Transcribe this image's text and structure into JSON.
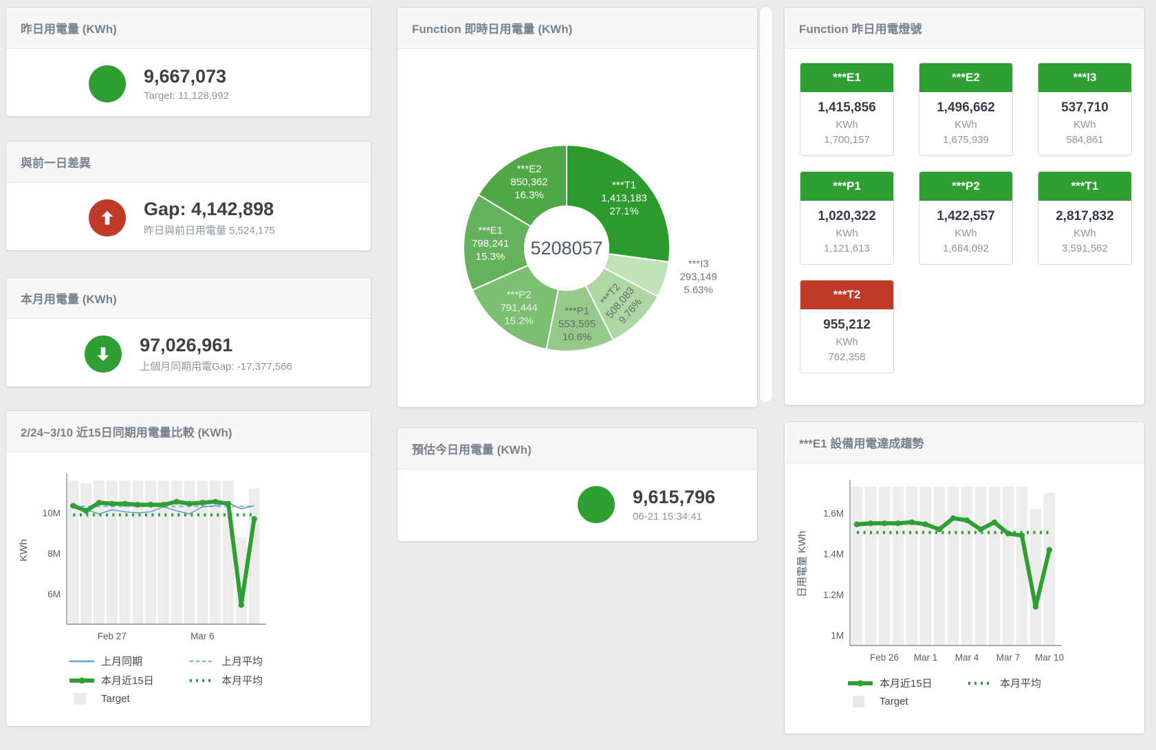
{
  "colors": {
    "green": "#2f9e33",
    "red": "#c03b27",
    "blue": "#5f9ed2",
    "blue_light": "#7fb3e0",
    "bar": "#ececec"
  },
  "cards": {
    "yesterday": {
      "title": "昨日用電量 (KWh)",
      "value": "9,667,073",
      "subtitle": "Target: 11,128,992",
      "status": "green",
      "icon": "circle"
    },
    "prev_day_gap": {
      "title": "與前一日差異",
      "value": "Gap: 4,142,898",
      "subtitle": "昨日與前日用電量 5,524,175",
      "status": "red",
      "icon": "arrow-up"
    },
    "month": {
      "title": "本月用電量 (KWh)",
      "value": "97,026,961",
      "subtitle": "上個月同期用電Gap: -17,377,566",
      "status": "green",
      "icon": "arrow-down"
    },
    "estimate": {
      "title": "預估今日用電量 (KWh)",
      "value": "9,615,796",
      "subtitle": "06-21 15:34:41",
      "status": "green",
      "icon": "circle"
    }
  },
  "lights": {
    "title": "Function 昨日用電燈號",
    "unit": "KWh",
    "tiles": [
      {
        "label": "***E1",
        "value": "1,415,856",
        "target": "1,700,157",
        "status": "green"
      },
      {
        "label": "***E2",
        "value": "1,496,662",
        "target": "1,675,939",
        "status": "green"
      },
      {
        "label": "***I3",
        "value": "537,710",
        "target": "584,861",
        "status": "green"
      },
      {
        "label": "***P1",
        "value": "1,020,322",
        "target": "1,121,613",
        "status": "green"
      },
      {
        "label": "***P2",
        "value": "1,422,557",
        "target": "1,684,092",
        "status": "green"
      },
      {
        "label": "***T1",
        "value": "2,817,832",
        "target": "3,591,562",
        "status": "green"
      },
      {
        "label": "***T2",
        "value": "955,212",
        "target": "762,358",
        "status": "red"
      }
    ]
  },
  "chart_data": [
    {
      "id": "realtime_donut",
      "type": "pie",
      "title": "Function 即時日用電量 (KWh)",
      "center_total": "5208057",
      "slices": [
        {
          "name": "***T1",
          "value": 1413183,
          "display": "1,413,183",
          "pct": "27.1%",
          "color": "#2c9a2c",
          "label_color": "#ffffff"
        },
        {
          "name": "***I3",
          "value": 293149,
          "display": "293,149",
          "pct": "5.63%",
          "color": "#c2e3ba",
          "label_color": "#6d7a81",
          "label_outside": true
        },
        {
          "name": "***T2",
          "value": 508083,
          "display": "508,083",
          "pct": "9.76%",
          "color": "#aed7a4",
          "label_color": "#5f6b64",
          "label_rotate": -50
        },
        {
          "name": "***P1",
          "value": 553595,
          "display": "553,595",
          "pct": "10.6%",
          "color": "#95ca8b",
          "label_color": "#5f6b64"
        },
        {
          "name": "***P2",
          "value": 791444,
          "display": "791,444",
          "pct": "15.2%",
          "color": "#7cbf72",
          "label_color": "#eef4ec"
        },
        {
          "name": "***E1",
          "value": 798241,
          "display": "798,241",
          "pct": "15.3%",
          "color": "#66b25c",
          "label_color": "#ffffff"
        },
        {
          "name": "***E2",
          "value": 850362,
          "display": "850,362",
          "pct": "16.3%",
          "color": "#4fa746",
          "label_color": "#ffffff"
        }
      ]
    },
    {
      "id": "compare15",
      "type": "line",
      "title": "2/24~3/10 近15日同期用電量比較 (KWh)",
      "ylabel": "KWh",
      "ylim": [
        4500000,
        11800000
      ],
      "yticks": [
        {
          "v": 6000000,
          "label": "6M"
        },
        {
          "v": 8000000,
          "label": "8M"
        },
        {
          "v": 10000000,
          "label": "10M"
        }
      ],
      "x_count": 15,
      "xticks": [
        {
          "i": 3,
          "label": "Feb 27"
        },
        {
          "i": 10,
          "label": "Mar 6"
        }
      ],
      "target": {
        "label": "Target",
        "color": "#ececec",
        "values": [
          11600000,
          11450000,
          11600000,
          11600000,
          11600000,
          11600000,
          11600000,
          11600000,
          11600000,
          11600000,
          11600000,
          11600000,
          11600000,
          8800000,
          11200000
        ]
      },
      "series": [
        {
          "name": "上月同期",
          "style": "thin",
          "color": "#5f9ed2",
          "values": [
            10450000,
            10150000,
            9950000,
            10150000,
            10050000,
            10000000,
            10050000,
            10300000,
            10100000,
            9950000,
            10300000,
            10350000,
            10500000,
            10200000,
            10350000
          ]
        },
        {
          "name": "上月平均",
          "style": "dashed",
          "color": "#7fb3e0",
          "values": [
            10320000,
            10320000,
            10320000,
            10320000,
            10320000,
            10320000,
            10320000,
            10320000,
            10320000,
            10320000,
            10320000,
            10320000,
            10320000,
            10320000,
            10320000
          ]
        },
        {
          "name": "本月近15日",
          "style": "thick",
          "color": "#2f9e33",
          "values": [
            10350000,
            10100000,
            10500000,
            10450000,
            10450000,
            10400000,
            10400000,
            10400000,
            10550000,
            10450000,
            10500000,
            10550000,
            10450000,
            5450000,
            9700000
          ]
        },
        {
          "name": "本月平均",
          "style": "dotted",
          "color": "#2f9e33",
          "values": [
            9900000,
            9900000,
            9900000,
            9900000,
            9900000,
            9900000,
            9900000,
            9900000,
            9900000,
            9900000,
            9900000,
            9900000,
            9900000,
            9900000,
            9900000
          ]
        }
      ],
      "legend_order": [
        "上月同期",
        "上月平均",
        "本月近15日",
        "本月平均",
        "Target"
      ]
    },
    {
      "id": "e1trend",
      "type": "line",
      "title": "***E1 設備用電達成趨勢",
      "ylabel": "日用電量 KWh",
      "ylim": [
        950000,
        1750000
      ],
      "yticks": [
        {
          "v": 1000000,
          "label": "1M"
        },
        {
          "v": 1200000,
          "label": "1.2M"
        },
        {
          "v": 1400000,
          "label": "1.4M"
        },
        {
          "v": 1600000,
          "label": "1.6M"
        }
      ],
      "x_count": 15,
      "xticks": [
        {
          "i": 2,
          "label": "Feb 26"
        },
        {
          "i": 5,
          "label": "Mar 1"
        },
        {
          "i": 8,
          "label": "Mar 4"
        },
        {
          "i": 11,
          "label": "Mar 7"
        },
        {
          "i": 14,
          "label": "Mar 10"
        }
      ],
      "target": {
        "label": "Target",
        "color": "#ececec",
        "values": [
          1730000,
          1730000,
          1730000,
          1730000,
          1730000,
          1730000,
          1730000,
          1730000,
          1730000,
          1730000,
          1730000,
          1730000,
          1730000,
          1620000,
          1700000
        ]
      },
      "series": [
        {
          "name": "本月近15日",
          "style": "thick",
          "color": "#2f9e33",
          "values": [
            1545000,
            1550000,
            1550000,
            1550000,
            1555000,
            1545000,
            1520000,
            1575000,
            1565000,
            1520000,
            1555000,
            1500000,
            1490000,
            1140000,
            1420000
          ]
        },
        {
          "name": "本月平均",
          "style": "dotted",
          "color": "#2f9e33",
          "values": [
            1505000,
            1505000,
            1505000,
            1505000,
            1505000,
            1505000,
            1505000,
            1505000,
            1505000,
            1505000,
            1505000,
            1505000,
            1505000,
            1505000,
            1505000
          ]
        }
      ],
      "legend_order": [
        "本月近15日",
        "本月平均",
        "Target"
      ]
    }
  ]
}
